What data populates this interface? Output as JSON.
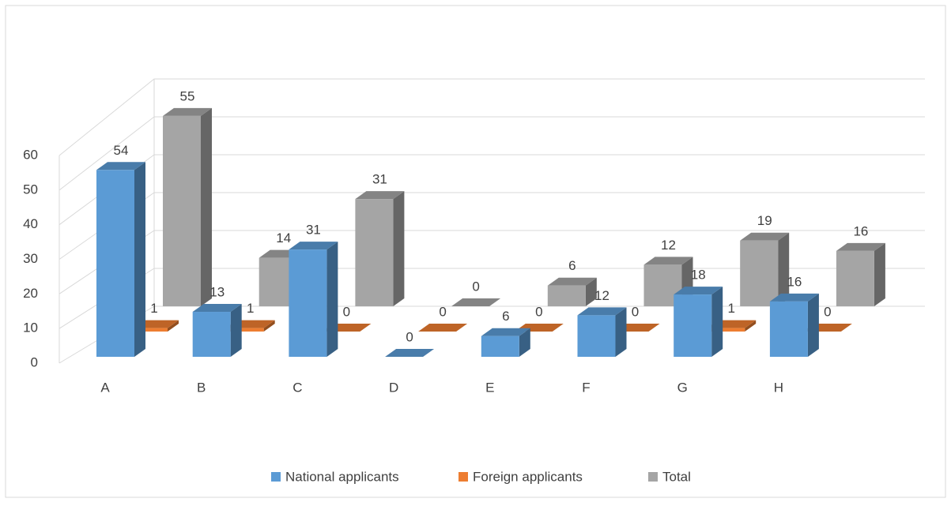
{
  "chart_data": {
    "type": "bar3d",
    "categories": [
      "A",
      "B",
      "C",
      "D",
      "E",
      "F",
      "G",
      "H"
    ],
    "series": [
      {
        "name": "National applicants",
        "color": "#5b9bd5",
        "values": [
          54,
          13,
          31,
          0,
          6,
          12,
          18,
          16
        ]
      },
      {
        "name": "Foreign applicants",
        "color": "#ed7d31",
        "values": [
          1,
          1,
          0,
          0,
          0,
          0,
          1,
          0
        ]
      },
      {
        "name": "Total",
        "color": "#a5a5a5",
        "values": [
          55,
          14,
          31,
          0,
          6,
          12,
          19,
          16
        ]
      }
    ],
    "ylim": [
      0,
      60
    ],
    "yticks": [
      0,
      10,
      20,
      30,
      40,
      50,
      60
    ],
    "grid": true,
    "legend": "bottom"
  }
}
